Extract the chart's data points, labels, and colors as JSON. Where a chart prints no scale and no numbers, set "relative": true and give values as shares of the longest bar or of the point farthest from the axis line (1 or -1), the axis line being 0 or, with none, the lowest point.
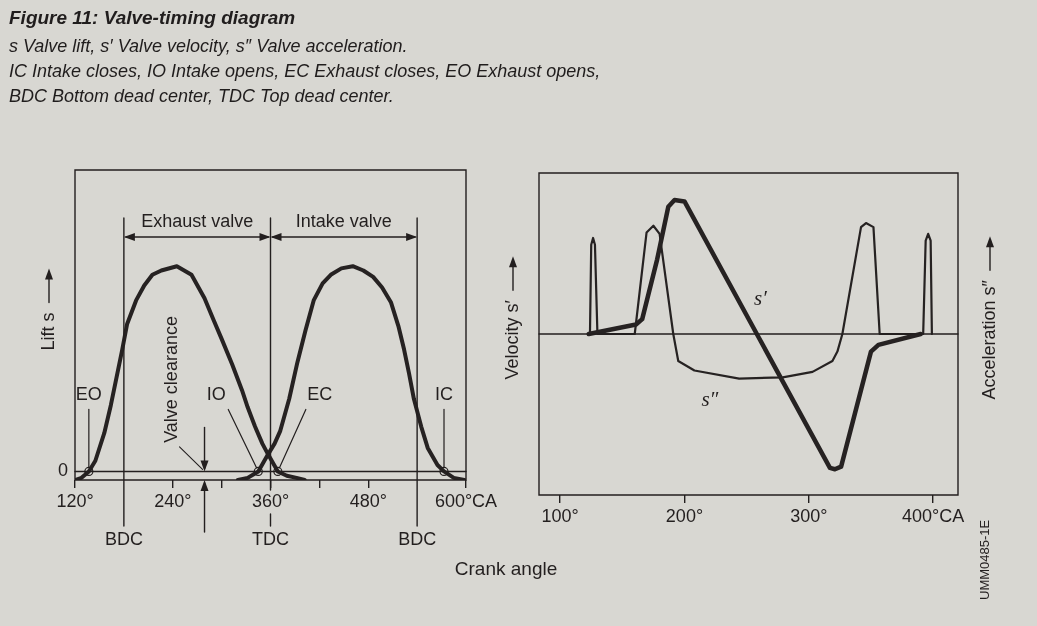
{
  "chart_data": [
    {
      "type": "line",
      "title": "Figure 11: Valve-timing diagram",
      "subtitle": "s Valve lift, s′ Valve velocity, s″ Valve acceleration.\nIC Intake closes, IO Intake opens, EC Exhaust closes, EO Exhaust opens,\nBDC Bottom dead center, TDC Top dead center.",
      "xlabel": "Crank angle",
      "ylabel": "Lift s",
      "relative": true,
      "xlim": [
        120,
        600
      ],
      "xticks": [
        {
          "value": 120,
          "label": "120°"
        },
        {
          "value": 240,
          "label": "240°"
        },
        {
          "value": 300,
          "label": null
        },
        {
          "value": 360,
          "label": "360°"
        },
        {
          "value": 420,
          "label": null
        },
        {
          "value": 480,
          "label": "480°"
        },
        {
          "value": 600,
          "label": "600°CA"
        }
      ],
      "series": [
        {
          "color": "#262222",
          "x": [
            120,
            128,
            137,
            145,
            156,
            164,
            171,
            178,
            184,
            195,
            205,
            215,
            226,
            245,
            263,
            279,
            290,
            300,
            313,
            325,
            332,
            341,
            350,
            357,
            369,
            380,
            392,
            402
          ],
          "values": [
            0,
            0.01,
            0.04,
            0.09,
            0.22,
            0.35,
            0.48,
            0.61,
            0.73,
            0.84,
            0.91,
            0.96,
            0.98,
            1,
            0.96,
            0.85,
            0.75,
            0.66,
            0.54,
            0.42,
            0.34,
            0.25,
            0.17,
            0.12,
            0.04,
            0.02,
            0.01,
            0
          ]
        },
        {
          "color": "#262222",
          "x": [
            320,
            332,
            345,
            357,
            365,
            372,
            383,
            393,
            403,
            413,
            424,
            434,
            447,
            461,
            474,
            486,
            497,
            508,
            517,
            524,
            530,
            536,
            545,
            553,
            565,
            573,
            585,
            598
          ],
          "values": [
            0,
            0.01,
            0.04,
            0.12,
            0.17,
            0.23,
            0.38,
            0.55,
            0.7,
            0.84,
            0.92,
            0.96,
            0.99,
            1,
            0.98,
            0.95,
            0.9,
            0.83,
            0.72,
            0.61,
            0.5,
            0.38,
            0.25,
            0.15,
            0.07,
            0.04,
            0.01,
            0
          ]
        }
      ],
      "ref_lines": [
        {
          "axis": "x",
          "value": 180,
          "label": "BDC"
        },
        {
          "axis": "x",
          "value": 360,
          "label": "TDC"
        },
        {
          "axis": "x",
          "value": 540,
          "label": "BDC"
        },
        {
          "axis": "y",
          "value": 0.04,
          "label": "0"
        }
      ],
      "annotations": [
        "Exhaust valve",
        "Intake valve",
        {
          "text": "Valve clearance",
          "x": 279,
          "y": 0.04
        },
        {
          "text": "EO",
          "x": 137,
          "y": 0.04
        },
        {
          "text": "IO",
          "x": 345,
          "y": 0.04
        },
        {
          "text": "EC",
          "x": 369,
          "y": 0.04
        },
        {
          "text": "IC",
          "x": 573,
          "y": 0.04
        }
      ]
    },
    {
      "type": "line",
      "ylabel": "Velocity s′",
      "y2label": "Acceleration s″",
      "relative": true,
      "xlim": [
        83,
        420
      ],
      "xticks": [
        {
          "value": 100,
          "label": "100°"
        },
        {
          "value": 200,
          "label": "200°"
        },
        {
          "value": 300,
          "label": "300°"
        },
        {
          "value": 400,
          "label": "400°CA"
        }
      ],
      "series": [
        {
          "name": "s′",
          "color": "#262222",
          "x": [
            123,
            161,
            166,
            178,
            187,
            192,
            200,
            317,
            321,
            326,
            350,
            356,
            390
          ],
          "values": [
            0,
            0.07,
            0.11,
            0.55,
            0.94,
            0.99,
            0.98,
            -0.99,
            -1,
            -0.98,
            -0.13,
            -0.08,
            0
          ]
        },
        {
          "name": "s″",
          "color": "#262222",
          "x": [
            124,
            125,
            126.5,
            128,
            130,
            160,
            169.5,
            175,
            180,
            191,
            195,
            208,
            244,
            279,
            303,
            319,
            323,
            327,
            342,
            346,
            352,
            357,
            389,
            392,
            394,
            396,
            398,
            399
          ],
          "values": [
            0,
            0.66,
            0.71,
            0.66,
            0,
            0,
            0.75,
            0.8,
            0.74,
            0,
            -0.2,
            -0.27,
            -0.33,
            -0.32,
            -0.28,
            -0.2,
            -0.13,
            0,
            0.79,
            0.82,
            0.79,
            0,
            0,
            0,
            0.69,
            0.74,
            0.69,
            0
          ]
        }
      ],
      "annotations": [
        "UMM0485-1E"
      ]
    }
  ]
}
